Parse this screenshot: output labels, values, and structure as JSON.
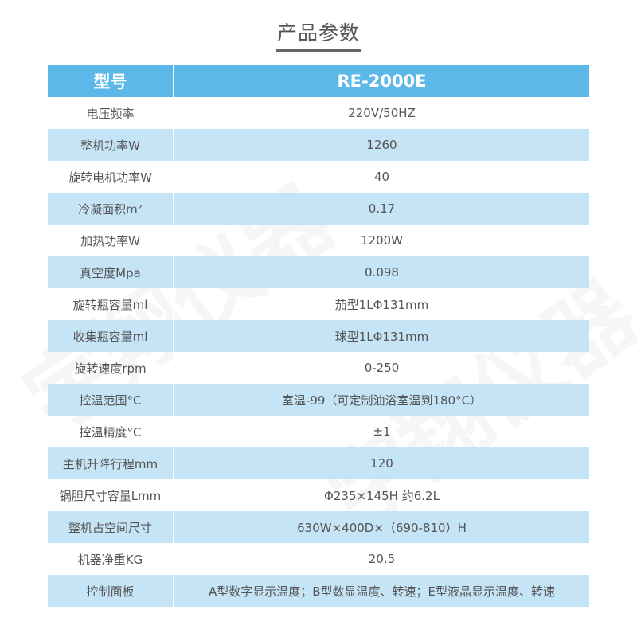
{
  "title": "产品参数",
  "watermark": "宇翔仪器",
  "header": {
    "label": "型号",
    "value": "RE-2000E"
  },
  "rows": [
    {
      "label": "电压频率",
      "value": "220V/50HZ"
    },
    {
      "label": "整机功率W",
      "value": "1260"
    },
    {
      "label": "旋转电机功率W",
      "value": "40"
    },
    {
      "label": "冷凝面积m²",
      "value": "0.17"
    },
    {
      "label": "加热功率W",
      "value": "1200W"
    },
    {
      "label": "真空度Mpa",
      "value": "0.098"
    },
    {
      "label": "旋转瓶容量ml",
      "value": "茄型1LΦ131mm"
    },
    {
      "label": "收集瓶容量ml",
      "value": "球型1LΦ131mm"
    },
    {
      "label": "旋转速度rpm",
      "value": "0-250"
    },
    {
      "label": "控温范围°C",
      "value": "室温-99（可定制油浴室温到180°C）"
    },
    {
      "label": "控温精度°C",
      "value": "±1"
    },
    {
      "label": "主机升降行程mm",
      "value": "120"
    },
    {
      "label": "锅胆尺寸容量Lmm",
      "value": "Φ235×145H  约6.2L"
    },
    {
      "label": "整机占空间尺寸",
      "value": "630W×400D×（690-810）H"
    },
    {
      "label": "机器净重KG",
      "value": "20.5"
    },
    {
      "label": "控制面板",
      "value": "A型数字显示温度；B型数显温度、转速；E型液晶显示温度、转速"
    }
  ]
}
